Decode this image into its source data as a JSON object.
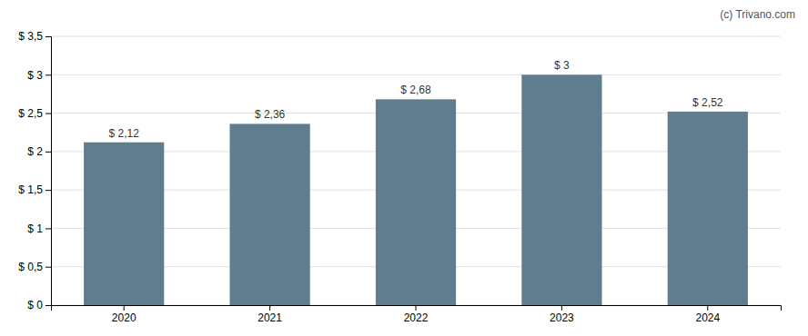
{
  "chart_data": {
    "type": "bar",
    "categories": [
      "2020",
      "2021",
      "2022",
      "2023",
      "2024"
    ],
    "values": [
      2.12,
      2.36,
      2.68,
      3.0,
      2.52
    ],
    "value_labels": [
      "$ 2,12",
      "$ 2,36",
      "$ 2,68",
      "$ 3",
      "$ 2,52"
    ],
    "color": "#607d8e",
    "ylim": [
      0,
      3.5
    ],
    "yticks": [
      {
        "value": 0,
        "label": "$ 0"
      },
      {
        "value": 0.5,
        "label": "$ 0,5"
      },
      {
        "value": 1.0,
        "label": "$ 1"
      },
      {
        "value": 1.5,
        "label": "$ 1,5"
      },
      {
        "value": 2.0,
        "label": "$ 2"
      },
      {
        "value": 2.5,
        "label": "$ 2,5"
      },
      {
        "value": 3.0,
        "label": "$ 3"
      },
      {
        "value": 3.5,
        "label": "$ 3,5"
      }
    ],
    "grid": true,
    "data_labels": true,
    "annotations": [
      "(c) Trivano.com"
    ]
  }
}
